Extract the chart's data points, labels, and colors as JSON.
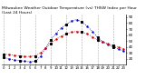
{
  "title": "Milwaukee Weather Outdoor Temperature (vs) THSW Index per Hour (Last 24 Hours)",
  "title_fontsize": 3.2,
  "hours": [
    0,
    1,
    2,
    3,
    4,
    5,
    6,
    7,
    8,
    9,
    10,
    11,
    12,
    13,
    14,
    15,
    16,
    17,
    18,
    19,
    20,
    21,
    22,
    23
  ],
  "temp": [
    28,
    27,
    26,
    25,
    24,
    24,
    25,
    30,
    38,
    46,
    53,
    58,
    62,
    65,
    66,
    65,
    62,
    57,
    52,
    48,
    45,
    42,
    40,
    37
  ],
  "thsw": [
    22,
    20,
    18,
    17,
    16,
    15,
    16,
    24,
    38,
    52,
    63,
    72,
    78,
    84,
    86,
    82,
    75,
    66,
    56,
    49,
    44,
    40,
    37,
    33
  ],
  "temp_color": "#cc0000",
  "thsw_color": "#0000cc",
  "bg_color": "#ffffff",
  "grid_color": "#aaaaaa",
  "ylim_min": 10,
  "ylim_max": 95,
  "yticks": [
    20,
    30,
    40,
    50,
    60,
    70,
    80,
    90
  ],
  "ylabel_fontsize": 3.0,
  "xlabel_fontsize": 2.8,
  "grid_positions": [
    0,
    3,
    6,
    9,
    12,
    15,
    18,
    21
  ]
}
